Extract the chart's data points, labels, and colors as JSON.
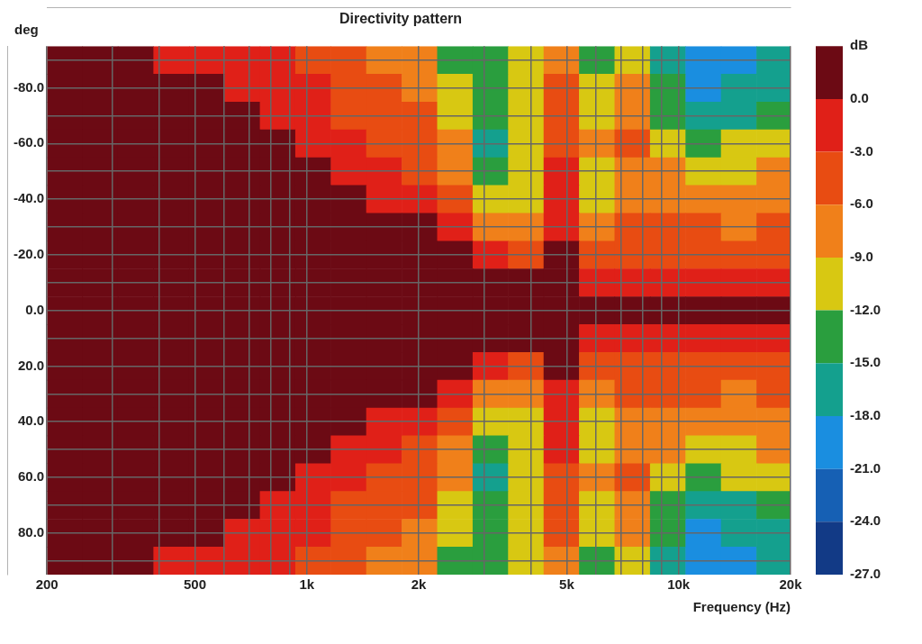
{
  "chart_data": {
    "type": "heatmap",
    "title": "Directivity pattern",
    "ylabel": "deg",
    "xlabel": "Frequency (Hz)",
    "clabel": "dB",
    "x": [
      223,
      278,
      346,
      432,
      538,
      670,
      834,
      1039,
      1294,
      1612,
      2008,
      2502,
      3116,
      3882,
      4836,
      6024,
      7504,
      9348,
      11645,
      14507,
      18071
    ],
    "xlim": [
      200,
      20000
    ],
    "log": "x",
    "xticks": [
      200,
      {
        "value": 300,
        "label": null
      },
      {
        "value": 400,
        "label": null
      },
      500,
      {
        "value": 600,
        "label": null
      },
      {
        "value": 700,
        "label": null
      },
      {
        "value": 800,
        "label": null
      },
      {
        "value": 900,
        "label": null
      },
      {
        "value": 1000,
        "label": "1k"
      },
      {
        "value": 2000,
        "label": "2k"
      },
      {
        "value": 3000,
        "label": null
      },
      {
        "value": 4000,
        "label": null
      },
      {
        "value": 5000,
        "label": "5k"
      },
      {
        "value": 6000,
        "label": null
      },
      {
        "value": 7000,
        "label": null
      },
      {
        "value": 8000,
        "label": null
      },
      {
        "value": 9000,
        "label": null
      },
      {
        "value": 10000,
        "label": "10k"
      },
      {
        "value": 20000,
        "label": "20k"
      }
    ],
    "y_categories": [
      null,
      "-80.0",
      null,
      "-60.0",
      null,
      "-40.0",
      null,
      "-20.0",
      null,
      "0.0",
      null,
      "20.0",
      null,
      "40.0",
      null,
      "60.0",
      null,
      "80.0",
      null
    ],
    "grid": true,
    "clim": [
      -27,
      3
    ],
    "cticks": [
      {
        "value": 0,
        "label": "0.0"
      },
      {
        "value": -3,
        "label": "-3.0"
      },
      {
        "value": -6,
        "label": "-6.0"
      },
      {
        "value": -9,
        "label": "-9.0"
      },
      {
        "value": -12,
        "label": "-12.0"
      },
      {
        "value": -15,
        "label": "-15.0"
      },
      {
        "value": -18,
        "label": "-18.0"
      },
      {
        "value": -21,
        "label": "-21.0"
      },
      {
        "value": -24,
        "label": "-24.0"
      },
      {
        "value": -27,
        "label": "-27.0"
      }
    ],
    "colors": [
      "#6c0a14",
      "#e02018",
      "#e84c12",
      "#f0801a",
      "#d8c812",
      "#2a9e3e",
      "#14a08e",
      "#1a8ee0",
      "#1660b4",
      "#123a86"
    ],
    "cells": [
      [
        1.5,
        1.5,
        1.5,
        -1.5,
        -1.5,
        -1.5,
        -1.5,
        -4.5,
        -4.5,
        -7.5,
        -7.5,
        -13.5,
        -13.5,
        -10.5,
        -7.5,
        -13.5,
        -10.5,
        -16.5,
        -19.5,
        -19.5,
        -16.5
      ],
      [
        1.5,
        1.5,
        1.5,
        1.5,
        1.5,
        -1.5,
        -1.5,
        -1.5,
        -4.5,
        -4.5,
        -7.5,
        -10.5,
        -13.5,
        -10.5,
        -4.5,
        -10.5,
        -7.5,
        -13.5,
        -19.5,
        -16.5,
        -16.5
      ],
      [
        1.5,
        1.5,
        1.5,
        1.5,
        1.5,
        1.5,
        -1.5,
        -1.5,
        -4.5,
        -4.5,
        -4.5,
        -10.5,
        -13.5,
        -10.5,
        -4.5,
        -10.5,
        -7.5,
        -13.5,
        -16.5,
        -16.5,
        -13.5
      ],
      [
        1.5,
        1.5,
        1.5,
        1.5,
        1.5,
        1.5,
        1.5,
        -1.5,
        -1.5,
        -4.5,
        -4.5,
        -7.5,
        -16.5,
        -10.5,
        -4.5,
        -7.5,
        -4.5,
        -10.5,
        -13.5,
        -10.5,
        -10.5
      ],
      [
        1.5,
        1.5,
        1.5,
        1.5,
        1.5,
        1.5,
        1.5,
        1.5,
        -1.5,
        -1.5,
        -4.5,
        -7.5,
        -13.5,
        -10.5,
        -1.5,
        -10.5,
        -7.5,
        -7.5,
        -10.5,
        -10.5,
        -7.5
      ],
      [
        1.5,
        1.5,
        1.5,
        1.5,
        1.5,
        1.5,
        1.5,
        1.5,
        1.5,
        -1.5,
        -1.5,
        -4.5,
        -10.5,
        -10.5,
        -1.5,
        -10.5,
        -7.5,
        -7.5,
        -7.5,
        -7.5,
        -7.5
      ],
      [
        1.5,
        1.5,
        1.5,
        1.5,
        1.5,
        1.5,
        1.5,
        1.5,
        1.5,
        1.5,
        1.5,
        -1.5,
        -7.5,
        -7.5,
        -1.5,
        -7.5,
        -4.5,
        -4.5,
        -4.5,
        -7.5,
        -4.5
      ],
      [
        1.5,
        1.5,
        1.5,
        1.5,
        1.5,
        1.5,
        1.5,
        1.5,
        1.5,
        1.5,
        1.5,
        1.5,
        -1.5,
        -4.5,
        1.5,
        -4.5,
        -4.5,
        -4.5,
        -4.5,
        -4.5,
        -4.5
      ],
      [
        1.5,
        1.5,
        1.5,
        1.5,
        1.5,
        1.5,
        1.5,
        1.5,
        1.5,
        1.5,
        1.5,
        1.5,
        1.5,
        1.5,
        1.5,
        -1.5,
        -1.5,
        -1.5,
        -1.5,
        -1.5,
        -1.5
      ],
      [
        1.5,
        1.5,
        1.5,
        1.5,
        1.5,
        1.5,
        1.5,
        1.5,
        1.5,
        1.5,
        1.5,
        1.5,
        1.5,
        1.5,
        1.5,
        1.5,
        1.5,
        1.5,
        1.5,
        1.5,
        1.5
      ],
      [
        1.5,
        1.5,
        1.5,
        1.5,
        1.5,
        1.5,
        1.5,
        1.5,
        1.5,
        1.5,
        1.5,
        1.5,
        1.5,
        1.5,
        1.5,
        -1.5,
        -1.5,
        -1.5,
        -1.5,
        -1.5,
        -1.5
      ],
      [
        1.5,
        1.5,
        1.5,
        1.5,
        1.5,
        1.5,
        1.5,
        1.5,
        1.5,
        1.5,
        1.5,
        1.5,
        -1.5,
        -4.5,
        1.5,
        -4.5,
        -4.5,
        -4.5,
        -4.5,
        -4.5,
        -4.5
      ],
      [
        1.5,
        1.5,
        1.5,
        1.5,
        1.5,
        1.5,
        1.5,
        1.5,
        1.5,
        1.5,
        1.5,
        -1.5,
        -7.5,
        -7.5,
        -1.5,
        -7.5,
        -4.5,
        -4.5,
        -4.5,
        -7.5,
        -4.5
      ],
      [
        1.5,
        1.5,
        1.5,
        1.5,
        1.5,
        1.5,
        1.5,
        1.5,
        1.5,
        -1.5,
        -1.5,
        -4.5,
        -10.5,
        -10.5,
        -1.5,
        -10.5,
        -7.5,
        -7.5,
        -7.5,
        -7.5,
        -7.5
      ],
      [
        1.5,
        1.5,
        1.5,
        1.5,
        1.5,
        1.5,
        1.5,
        1.5,
        -1.5,
        -1.5,
        -4.5,
        -7.5,
        -13.5,
        -10.5,
        -1.5,
        -10.5,
        -7.5,
        -7.5,
        -10.5,
        -10.5,
        -7.5
      ],
      [
        1.5,
        1.5,
        1.5,
        1.5,
        1.5,
        1.5,
        1.5,
        -1.5,
        -1.5,
        -4.5,
        -4.5,
        -7.5,
        -16.5,
        -10.5,
        -4.5,
        -7.5,
        -4.5,
        -10.5,
        -13.5,
        -10.5,
        -10.5
      ],
      [
        1.5,
        1.5,
        1.5,
        1.5,
        1.5,
        1.5,
        -1.5,
        -1.5,
        -4.5,
        -4.5,
        -4.5,
        -10.5,
        -13.5,
        -10.5,
        -4.5,
        -10.5,
        -7.5,
        -13.5,
        -16.5,
        -16.5,
        -13.5
      ],
      [
        1.5,
        1.5,
        1.5,
        1.5,
        1.5,
        -1.5,
        -1.5,
        -1.5,
        -4.5,
        -4.5,
        -7.5,
        -10.5,
        -13.5,
        -10.5,
        -4.5,
        -10.5,
        -7.5,
        -13.5,
        -19.5,
        -16.5,
        -16.5
      ],
      [
        1.5,
        1.5,
        1.5,
        -1.5,
        -1.5,
        -1.5,
        -1.5,
        -4.5,
        -4.5,
        -7.5,
        -7.5,
        -13.5,
        -13.5,
        -10.5,
        -7.5,
        -13.5,
        -10.5,
        -16.5,
        -19.5,
        -19.5,
        -16.5
      ]
    ]
  }
}
